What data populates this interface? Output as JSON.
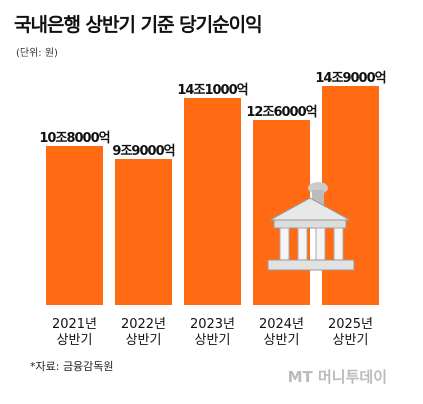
{
  "chart_data": {
    "type": "bar",
    "title": "국내은행 상반기 기준 당기순이익",
    "subtitle": "(단위: 원)",
    "categories": [
      "2021년\n상반기",
      "2022년\n상반기",
      "2023년\n상반기",
      "2024년\n상반기",
      "2025년\n상반기"
    ],
    "values": [
      10.8,
      9.9,
      14.1,
      12.6,
      14.9
    ],
    "value_labels": [
      "10조8000억",
      "9조9000억",
      "14조1000억",
      "12조6000억",
      "14조9000억"
    ],
    "color": "#ff6a13"
  },
  "source": "*자료: 금융감독원",
  "watermark": "MT 머니투데이"
}
